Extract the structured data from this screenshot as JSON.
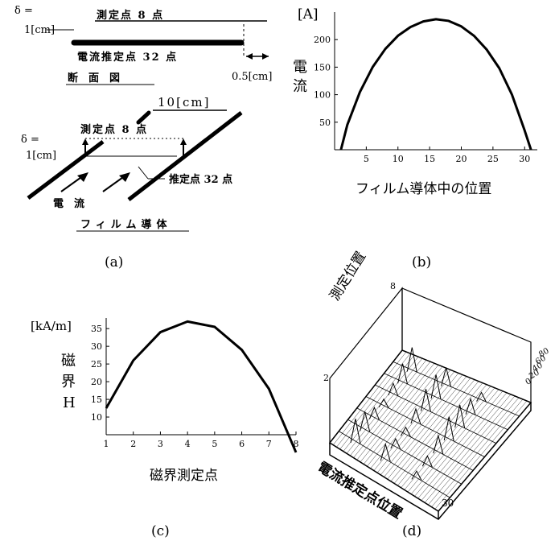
{
  "figure": {
    "panel_a": {
      "caption": "(a)",
      "cross_section": {
        "delta_label": "δ =",
        "delta_value": "1[cm]",
        "measure_points": "測定点 8 点",
        "estimate_points": "電流推定点 32 点",
        "gap_label": "0.5[cm]",
        "title": "断　面　図"
      },
      "film": {
        "width_label": "10[cm]",
        "measure_points": "測定点 8 点",
        "delta_label": "δ =",
        "delta_value": "1[cm]",
        "estimate_points": "推定点 32 点",
        "current_label": "電　流",
        "title": "フィルム導体"
      }
    },
    "panel_b": {
      "caption": "(b)",
      "unit": "[A]",
      "ylabel": "電流",
      "xlabel": "フィルム導体中の位置"
    },
    "panel_c": {
      "caption": "(c)",
      "unit": "[kA/m]",
      "ylabel_1": "磁",
      "ylabel_2": "界",
      "ylabel_3": "H",
      "xlabel": "磁界測定点"
    },
    "panel_d": {
      "caption": "(d)",
      "y_axis_title": "測定位置",
      "x_axis_title": "電流推定点位置",
      "tick_y_top": "8",
      "tick_y_low": "2",
      "tick_x_end": "30",
      "z_ticks": [
        "80",
        "60",
        "40",
        "20",
        "0"
      ]
    }
  },
  "chart_data": [
    {
      "type": "line",
      "x": [
        1,
        2,
        4,
        6,
        8,
        10,
        12,
        14,
        16,
        18,
        20,
        22,
        24,
        26,
        28,
        30,
        31
      ],
      "series": [
        {
          "values": [
            0,
            45,
            105,
            150,
            183,
            207,
            223,
            233,
            237,
            234,
            224,
            207,
            182,
            148,
            100,
            35,
            0
          ]
        }
      ],
      "xticks": [
        5,
        10,
        15,
        20,
        25,
        30
      ],
      "yticks": [
        50,
        100,
        150,
        200
      ],
      "xlim": [
        0,
        32
      ],
      "ylim": [
        0,
        250
      ]
    },
    {
      "type": "line",
      "x": [
        1,
        2,
        3,
        4,
        5,
        6,
        7,
        8
      ],
      "series": [
        {
          "values": [
            12.5,
            26,
            34,
            37,
            35.5,
            29,
            18,
            0
          ]
        }
      ],
      "xticks": [
        1,
        2,
        3,
        4,
        5,
        6,
        7,
        8
      ],
      "yticks": [
        10,
        15,
        20,
        25,
        30,
        35
      ],
      "xlim": [
        1,
        8
      ],
      "ylim": [
        5,
        38
      ]
    }
  ]
}
